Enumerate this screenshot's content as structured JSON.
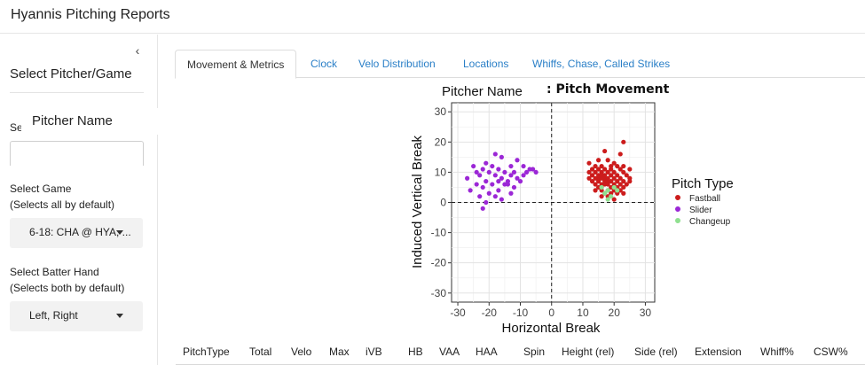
{
  "app": {
    "title": "Hyannis Pitching Reports"
  },
  "sidebar": {
    "collapse_icon": "chevron-left-icon",
    "title": "Select Pitcher/Game",
    "pitcher_label": "Select Pitcher",
    "pitcher_value": "Pitcher Name",
    "game_label_1": "Select Game",
    "game_label_2": "(Selects all by default)",
    "game_value": "6-18: CHA @ HYA, ...",
    "hand_label_1": "Select Batter Hand",
    "hand_label_2": "(Selects both by default)",
    "hand_value": "Left, Right"
  },
  "tabs": [
    {
      "label": "Movement & Metrics",
      "active": true
    },
    {
      "label": "Clock",
      "active": false
    },
    {
      "label": "Velo Distribution",
      "active": false
    },
    {
      "label": "Locations",
      "active": false
    },
    {
      "label": "Whiffs, Chase, Called Strikes",
      "active": false
    }
  ],
  "table": {
    "headers": [
      "PitchType",
      "Total",
      "Velo",
      "Max",
      "iVB",
      "HB",
      "VAA",
      "HAA",
      "Spin",
      "Height (rel)",
      "Side (rel)",
      "Extension",
      "Whiff%",
      "CSW%"
    ]
  },
  "chart_data": {
    "type": "scatter",
    "title_left": "Pitcher Name",
    "title_right": ": Pitch Movement",
    "xlabel": "Horizontal Break",
    "ylabel": "Induced Vertical Break",
    "xlim": [
      -32,
      33
    ],
    "ylim": [
      -33,
      33
    ],
    "xticks": [
      -30,
      -20,
      -10,
      0,
      10,
      20,
      30
    ],
    "yticks": [
      -30,
      -20,
      -10,
      0,
      10,
      20,
      30
    ],
    "grid": true,
    "reference_lines": {
      "x": 0,
      "y": 0,
      "style": "dashed"
    },
    "legend": {
      "title": "Pitch Type",
      "position": "right"
    },
    "series": [
      {
        "name": "Fastball",
        "color": "#cc1c1c",
        "points": [
          [
            23,
            20
          ],
          [
            17,
            17
          ],
          [
            22,
            16
          ],
          [
            15,
            14
          ],
          [
            18,
            14
          ],
          [
            12,
            13
          ],
          [
            20,
            13
          ],
          [
            23,
            12
          ],
          [
            14,
            12
          ],
          [
            16,
            12
          ],
          [
            19,
            12
          ],
          [
            21,
            12
          ],
          [
            13,
            11
          ],
          [
            15,
            11
          ],
          [
            17,
            11
          ],
          [
            19,
            11
          ],
          [
            22,
            11
          ],
          [
            25,
            11
          ],
          [
            12,
            10
          ],
          [
            14,
            10
          ],
          [
            16,
            10
          ],
          [
            18,
            10
          ],
          [
            20,
            10
          ],
          [
            23,
            10
          ],
          [
            13,
            9
          ],
          [
            15,
            9
          ],
          [
            16,
            9
          ],
          [
            17,
            9
          ],
          [
            19,
            9
          ],
          [
            21,
            9
          ],
          [
            24,
            9
          ],
          [
            12,
            8
          ],
          [
            14,
            8
          ],
          [
            15,
            8
          ],
          [
            16,
            8
          ],
          [
            17,
            8
          ],
          [
            18,
            8
          ],
          [
            20,
            8
          ],
          [
            22,
            8
          ],
          [
            25,
            8
          ],
          [
            13,
            7
          ],
          [
            15,
            7
          ],
          [
            17,
            7
          ],
          [
            18,
            7
          ],
          [
            19,
            7
          ],
          [
            21,
            7
          ],
          [
            23,
            7
          ],
          [
            14,
            6
          ],
          [
            16,
            6
          ],
          [
            17,
            6
          ],
          [
            18,
            6
          ],
          [
            20,
            6
          ],
          [
            22,
            6
          ],
          [
            24,
            6
          ],
          [
            15,
            5
          ],
          [
            16,
            5
          ],
          [
            19,
            5
          ],
          [
            21,
            5
          ],
          [
            23,
            5
          ],
          [
            14,
            4
          ],
          [
            16,
            4
          ],
          [
            18,
            4
          ],
          [
            20,
            4
          ],
          [
            22,
            4
          ],
          [
            17,
            3
          ],
          [
            19,
            3
          ],
          [
            21,
            3
          ],
          [
            23,
            3
          ],
          [
            18,
            2
          ],
          [
            16,
            2
          ],
          [
            20,
            1
          ],
          [
            25,
            7
          ]
        ]
      },
      {
        "name": "Slider",
        "color": "#9b27d6",
        "points": [
          [
            -18,
            16
          ],
          [
            -16,
            15
          ],
          [
            -21,
            13
          ],
          [
            -11,
            14
          ],
          [
            -25,
            12
          ],
          [
            -19,
            12
          ],
          [
            -13,
            12
          ],
          [
            -22,
            11
          ],
          [
            -17,
            11
          ],
          [
            -9,
            12
          ],
          [
            -7,
            11
          ],
          [
            -5,
            10
          ],
          [
            -24,
            10
          ],
          [
            -20,
            10
          ],
          [
            -15,
            10
          ],
          [
            -12,
            10
          ],
          [
            -8,
            10
          ],
          [
            -23,
            9
          ],
          [
            -18,
            9
          ],
          [
            -13,
            9
          ],
          [
            -16,
            8
          ],
          [
            -11,
            8
          ],
          [
            -27,
            8
          ],
          [
            -21,
            7
          ],
          [
            -17,
            7
          ],
          [
            -14,
            7
          ],
          [
            -10,
            7
          ],
          [
            -24,
            6
          ],
          [
            -19,
            6
          ],
          [
            -15,
            6
          ],
          [
            -12,
            5
          ],
          [
            -22,
            5
          ],
          [
            -17,
            4
          ],
          [
            -26,
            4
          ],
          [
            -13,
            3
          ],
          [
            -20,
            3
          ],
          [
            -23,
            2
          ],
          [
            -18,
            2
          ],
          [
            -16,
            1
          ],
          [
            -21,
            0
          ],
          [
            -22,
            -2
          ],
          [
            -14,
            6
          ],
          [
            -6,
            11
          ],
          [
            -9,
            9
          ]
        ]
      },
      {
        "name": "Changeup",
        "color": "#90e090",
        "points": [
          [
            16,
            5
          ],
          [
            18,
            4
          ],
          [
            20,
            5
          ],
          [
            17,
            3
          ],
          [
            19,
            2
          ],
          [
            21,
            4
          ],
          [
            18,
            1
          ]
        ]
      }
    ]
  }
}
